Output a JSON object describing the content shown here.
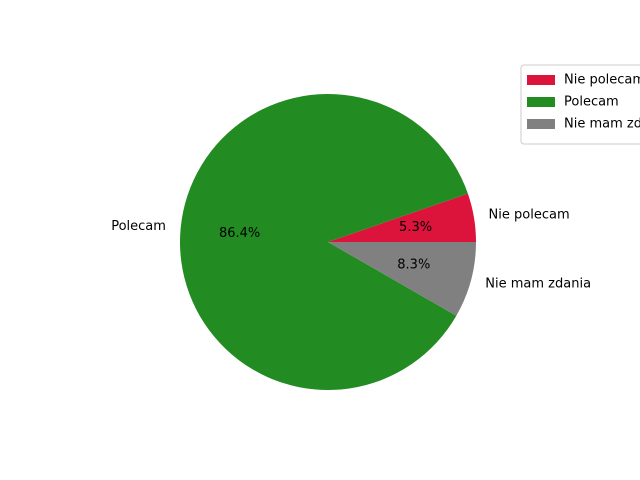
{
  "chart_data": {
    "type": "pie",
    "title": "",
    "categories": [
      "Nie polecam",
      "Polecam",
      "Nie mam zdania"
    ],
    "values": [
      5.3,
      86.4,
      8.3
    ],
    "percent_labels": [
      "5.3%",
      "86.4%",
      "8.3%"
    ],
    "colors": [
      "#dc143c",
      "#228b22",
      "#808080"
    ],
    "start_angle_deg": 0,
    "legend": {
      "placement": "top-right",
      "entries": [
        "Nie polecam",
        "Polecam",
        "Nie mam zdania"
      ]
    }
  }
}
